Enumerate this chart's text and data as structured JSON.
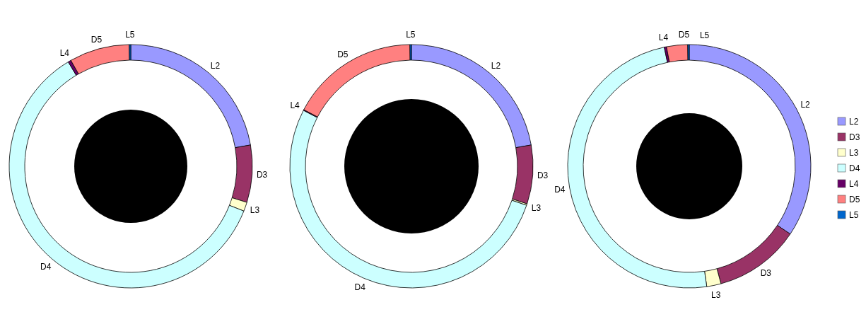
{
  "chart_data": [
    {
      "type": "donut",
      "categories": [
        "L2",
        "D3",
        "L3",
        "D4",
        "L4",
        "D5",
        "L5"
      ],
      "values": [
        22.2,
        7.6,
        1.2,
        60.4,
        0.4,
        8,
        0.2
      ],
      "colors": [
        "#9999ff",
        "#993366",
        "#ffffcc",
        "#ccffff",
        "#660066",
        "#ff8080",
        "#0066cc"
      ],
      "legend": false
    },
    {
      "type": "donut",
      "categories": [
        "L2",
        "D3",
        "L3",
        "D4",
        "L4",
        "D5",
        "L5"
      ],
      "values": [
        22.2,
        7.8,
        0.2,
        52.4,
        0.1,
        17.1,
        0.2
      ],
      "colors": [
        "#9999ff",
        "#993366",
        "#ffffcc",
        "#ccffff",
        "#660066",
        "#ff8080",
        "#0066cc"
      ],
      "legend": false
    },
    {
      "type": "donut",
      "categories": [
        "L2",
        "D3",
        "L3",
        "D4",
        "L4",
        "D5",
        "L5"
      ],
      "values": [
        34.4,
        11.4,
        1.9,
        49,
        0.3,
        2.8,
        0.2
      ],
      "colors": [
        "#9999ff",
        "#993366",
        "#ffffcc",
        "#ccffff",
        "#660066",
        "#ff8080",
        "#0066cc"
      ],
      "legend": "right"
    }
  ]
}
